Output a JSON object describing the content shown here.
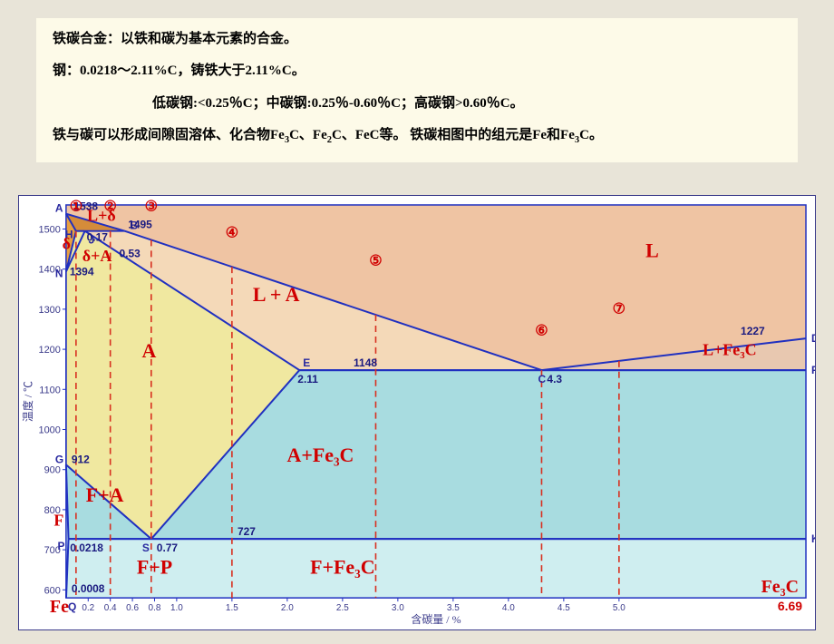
{
  "text": {
    "line1_a": "铁碳合金：以铁和碳为基本元素的合金。",
    "line2_a": "钢：0.0218～2.11%C，铸铁大于2.11%C。",
    "line3_a": "低碳钢:<0.25％C；中碳钢:0.25％-0.60％C；高碳钢>0.60％C。",
    "line4_a": "铁与碳可以形成间隙固溶体、化合物Fe",
    "line4_b": "C、Fe",
    "line4_c": "C、FeC等。  铁碳相图中的组元是Fe和Fe",
    "line4_d": "C。"
  },
  "axes": {
    "x_label": "含碳量  /  %",
    "y_label": "温度 / ℃",
    "y_ticks": [
      600,
      700,
      800,
      900,
      1000,
      1100,
      1200,
      1300,
      1400,
      1500
    ],
    "x_ticks": [
      0.2,
      0.4,
      0.6,
      0.8,
      1.0,
      1.5,
      2.0,
      2.5,
      3.0,
      3.5,
      4.0,
      4.5,
      5.0
    ],
    "x_min": 0,
    "x_max": 6.69,
    "y_min": 580,
    "y_max": 1560
  },
  "points": {
    "A": {
      "c": 0,
      "t": 1538,
      "label": "A"
    },
    "H": {
      "c": 0.09,
      "t": 1495,
      "label": "H"
    },
    "J": {
      "c": 0.17,
      "t": 1495,
      "label": "J"
    },
    "B": {
      "c": 0.53,
      "t": 1495,
      "label": "B"
    },
    "N": {
      "c": 0,
      "t": 1394,
      "label": "N"
    },
    "D": {
      "c": 6.69,
      "t": 1227,
      "label": "D"
    },
    "E": {
      "c": 2.11,
      "t": 1148,
      "label": "E"
    },
    "C": {
      "c": 4.3,
      "t": 1148,
      "label": "C"
    },
    "F": {
      "c": 6.69,
      "t": 1148,
      "label": "F"
    },
    "G": {
      "c": 0,
      "t": 912,
      "label": "G"
    },
    "P": {
      "c": 0.0218,
      "t": 727,
      "label": "P"
    },
    "S": {
      "c": 0.77,
      "t": 727,
      "label": "S"
    },
    "K": {
      "c": 6.69,
      "t": 727,
      "label": "K"
    },
    "Q": {
      "c": 0.0008,
      "t": 580,
      "label": "Q"
    }
  },
  "point_vals": {
    "A_t": "1538",
    "B_t": "1495",
    "N_t": "1394",
    "D_t": "1227",
    "E_t": "1148",
    "G_t": "912",
    "S_t": "727",
    "J_c": "0.17",
    "B_c": "0.53",
    "E_c": "2.11",
    "C_c": "4.3",
    "P_c": "0.0218",
    "S_c": "0.77",
    "Q_c": "0.0008",
    "Fe3C_c": "6.69"
  },
  "regions": {
    "L": "L",
    "Ld": "L+δ",
    "LA": "L + A",
    "LFe3C": "L+Fe₃C",
    "d": "δ",
    "dA": "δ+A",
    "A": "A",
    "FA": "F+A",
    "F": "F",
    "AFe3C": "A+Fe₃C",
    "FFe3C": "F+Fe₃C",
    "FP": "F+P"
  },
  "circled": {
    "1": "①",
    "2": "②",
    "3": "③",
    "4": "④",
    "5": "⑤",
    "6": "⑥",
    "7": "⑦"
  },
  "corners": {
    "Fe": "Fe",
    "Fe3C": "Fe₃C"
  },
  "colors": {
    "L": "#efc4a3",
    "LA": "#f4d9b8",
    "Ld": "#d58c3a",
    "d": "#e8a040",
    "A": "#f0e8a0",
    "dA": "#f0e8a0",
    "FA": "#a8dce0",
    "AFe3C": "#a8dce0",
    "below727": "#cfeef0",
    "LFe3C": "#e8c8b0",
    "line": "#2030c0",
    "text_blue": "#1a1a80",
    "text_red": "#d00000",
    "dashed_red": "#d83020"
  },
  "dashed_x": [
    0.09,
    0.4,
    0.77,
    1.5,
    2.8,
    4.3,
    5.0
  ]
}
